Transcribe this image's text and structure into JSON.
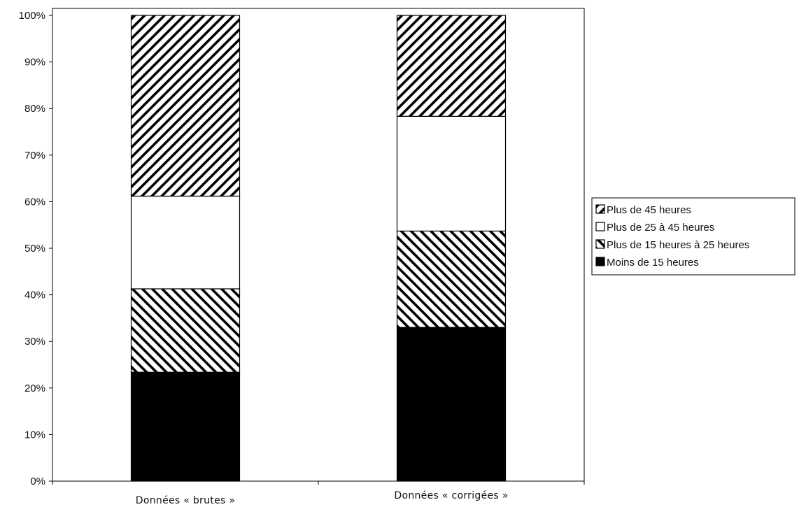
{
  "chart_data": {
    "type": "bar",
    "stacked": true,
    "percent_stacked": true,
    "categories": [
      "Données « brutes »",
      "Données « corrigées »"
    ],
    "series": [
      {
        "name": "Moins de 15 heures",
        "values": [
          23.5,
          33.5
        ],
        "fill": "solid",
        "color": "#000000"
      },
      {
        "name": "Plus de 15 heures à 25 heures",
        "values": [
          18,
          21
        ],
        "fill": "hatch-backslash",
        "color": "#000000"
      },
      {
        "name": "Plus de 25 à 45 heures",
        "values": [
          20,
          25
        ],
        "fill": "none",
        "color": "#ffffff"
      },
      {
        "name": "Plus de 45 heures",
        "values": [
          39,
          22
        ],
        "fill": "hatch-slash",
        "color": "#000000"
      }
    ],
    "ylim": [
      0,
      100
    ],
    "yticks": [
      "0%",
      "10%",
      "20%",
      "30%",
      "40%",
      "50%",
      "60%",
      "70%",
      "80%",
      "90%",
      "100%"
    ],
    "xlabel": "",
    "ylabel": "",
    "title": "",
    "grid": false,
    "legend_position": "right",
    "legend_order": [
      "Plus de 45 heures",
      "Plus de 25 à 45 heures",
      "Plus de 15 heures à 25 heures",
      "Moins de 15 heures"
    ]
  }
}
